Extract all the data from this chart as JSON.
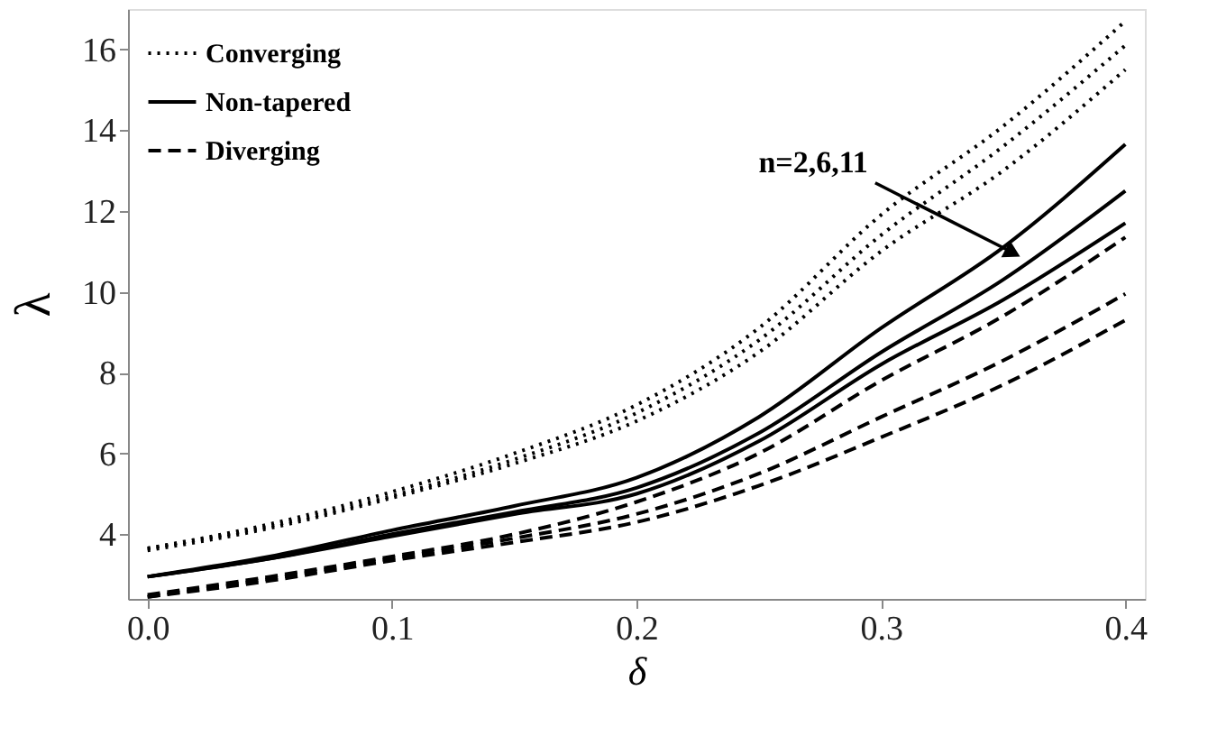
{
  "chart_data": {
    "type": "line",
    "xlabel": "δ",
    "ylabel": "λ",
    "x": [
      0,
      0.05,
      0.1,
      0.15,
      0.2,
      0.25,
      0.3,
      0.35,
      0.4
    ],
    "series": [
      {
        "name": "Converging",
        "color": "#000000",
        "line_style": "dotted",
        "values": [
          3.65,
          4.25,
          5.05,
          6.0,
          7.2,
          9.1,
          11.9,
          14.1,
          16.7
        ]
      },
      {
        "color": "#000000",
        "line_style": "dotted",
        "values": [
          3.65,
          4.2,
          4.95,
          5.85,
          7.0,
          8.8,
          11.4,
          13.6,
          16.1
        ]
      },
      {
        "color": "#000000",
        "line_style": "dotted",
        "values": [
          3.6,
          4.15,
          4.9,
          5.75,
          6.8,
          8.5,
          11.0,
          13.0,
          15.5
        ]
      },
      {
        "name": "Non-tapered",
        "color": "#000000",
        "line_style": "solid",
        "values": [
          2.95,
          3.45,
          4.1,
          4.7,
          5.4,
          6.9,
          9.1,
          11.1,
          13.65
        ]
      },
      {
        "color": "#000000",
        "line_style": "solid",
        "values": [
          2.95,
          3.4,
          4.0,
          4.55,
          5.15,
          6.5,
          8.5,
          10.3,
          12.5
        ]
      },
      {
        "color": "#000000",
        "line_style": "solid",
        "values": [
          2.95,
          3.4,
          3.95,
          4.5,
          5.0,
          6.3,
          8.2,
          9.8,
          11.7
        ]
      },
      {
        "name": "Diverging",
        "color": "#000000",
        "line_style": "dashed",
        "values": [
          2.5,
          2.95,
          3.45,
          4.0,
          4.8,
          6.0,
          7.8,
          9.4,
          11.35
        ]
      },
      {
        "color": "#000000",
        "line_style": "dashed",
        "values": [
          2.45,
          2.9,
          3.4,
          3.9,
          4.5,
          5.5,
          6.9,
          8.3,
          9.95
        ]
      },
      {
        "color": "#000000",
        "line_style": "dashed",
        "values": [
          2.45,
          2.85,
          3.35,
          3.8,
          4.3,
          5.2,
          6.4,
          7.7,
          9.3
        ]
      }
    ],
    "xlim": [
      -0.008,
      0.408
    ],
    "xticks": [
      {
        "value": 0,
        "label": "0.0"
      },
      0.1,
      0.2,
      0.3,
      0.4
    ],
    "ylim": [
      2.4,
      17
    ],
    "yticks": [
      4,
      6,
      8,
      10,
      12,
      14,
      16
    ],
    "annotations": [
      {
        "text": "n=2,6,11",
        "x": 0.353,
        "y": 11.0
      }
    ],
    "legend": "top left",
    "grid": false,
    "marker": "none"
  }
}
